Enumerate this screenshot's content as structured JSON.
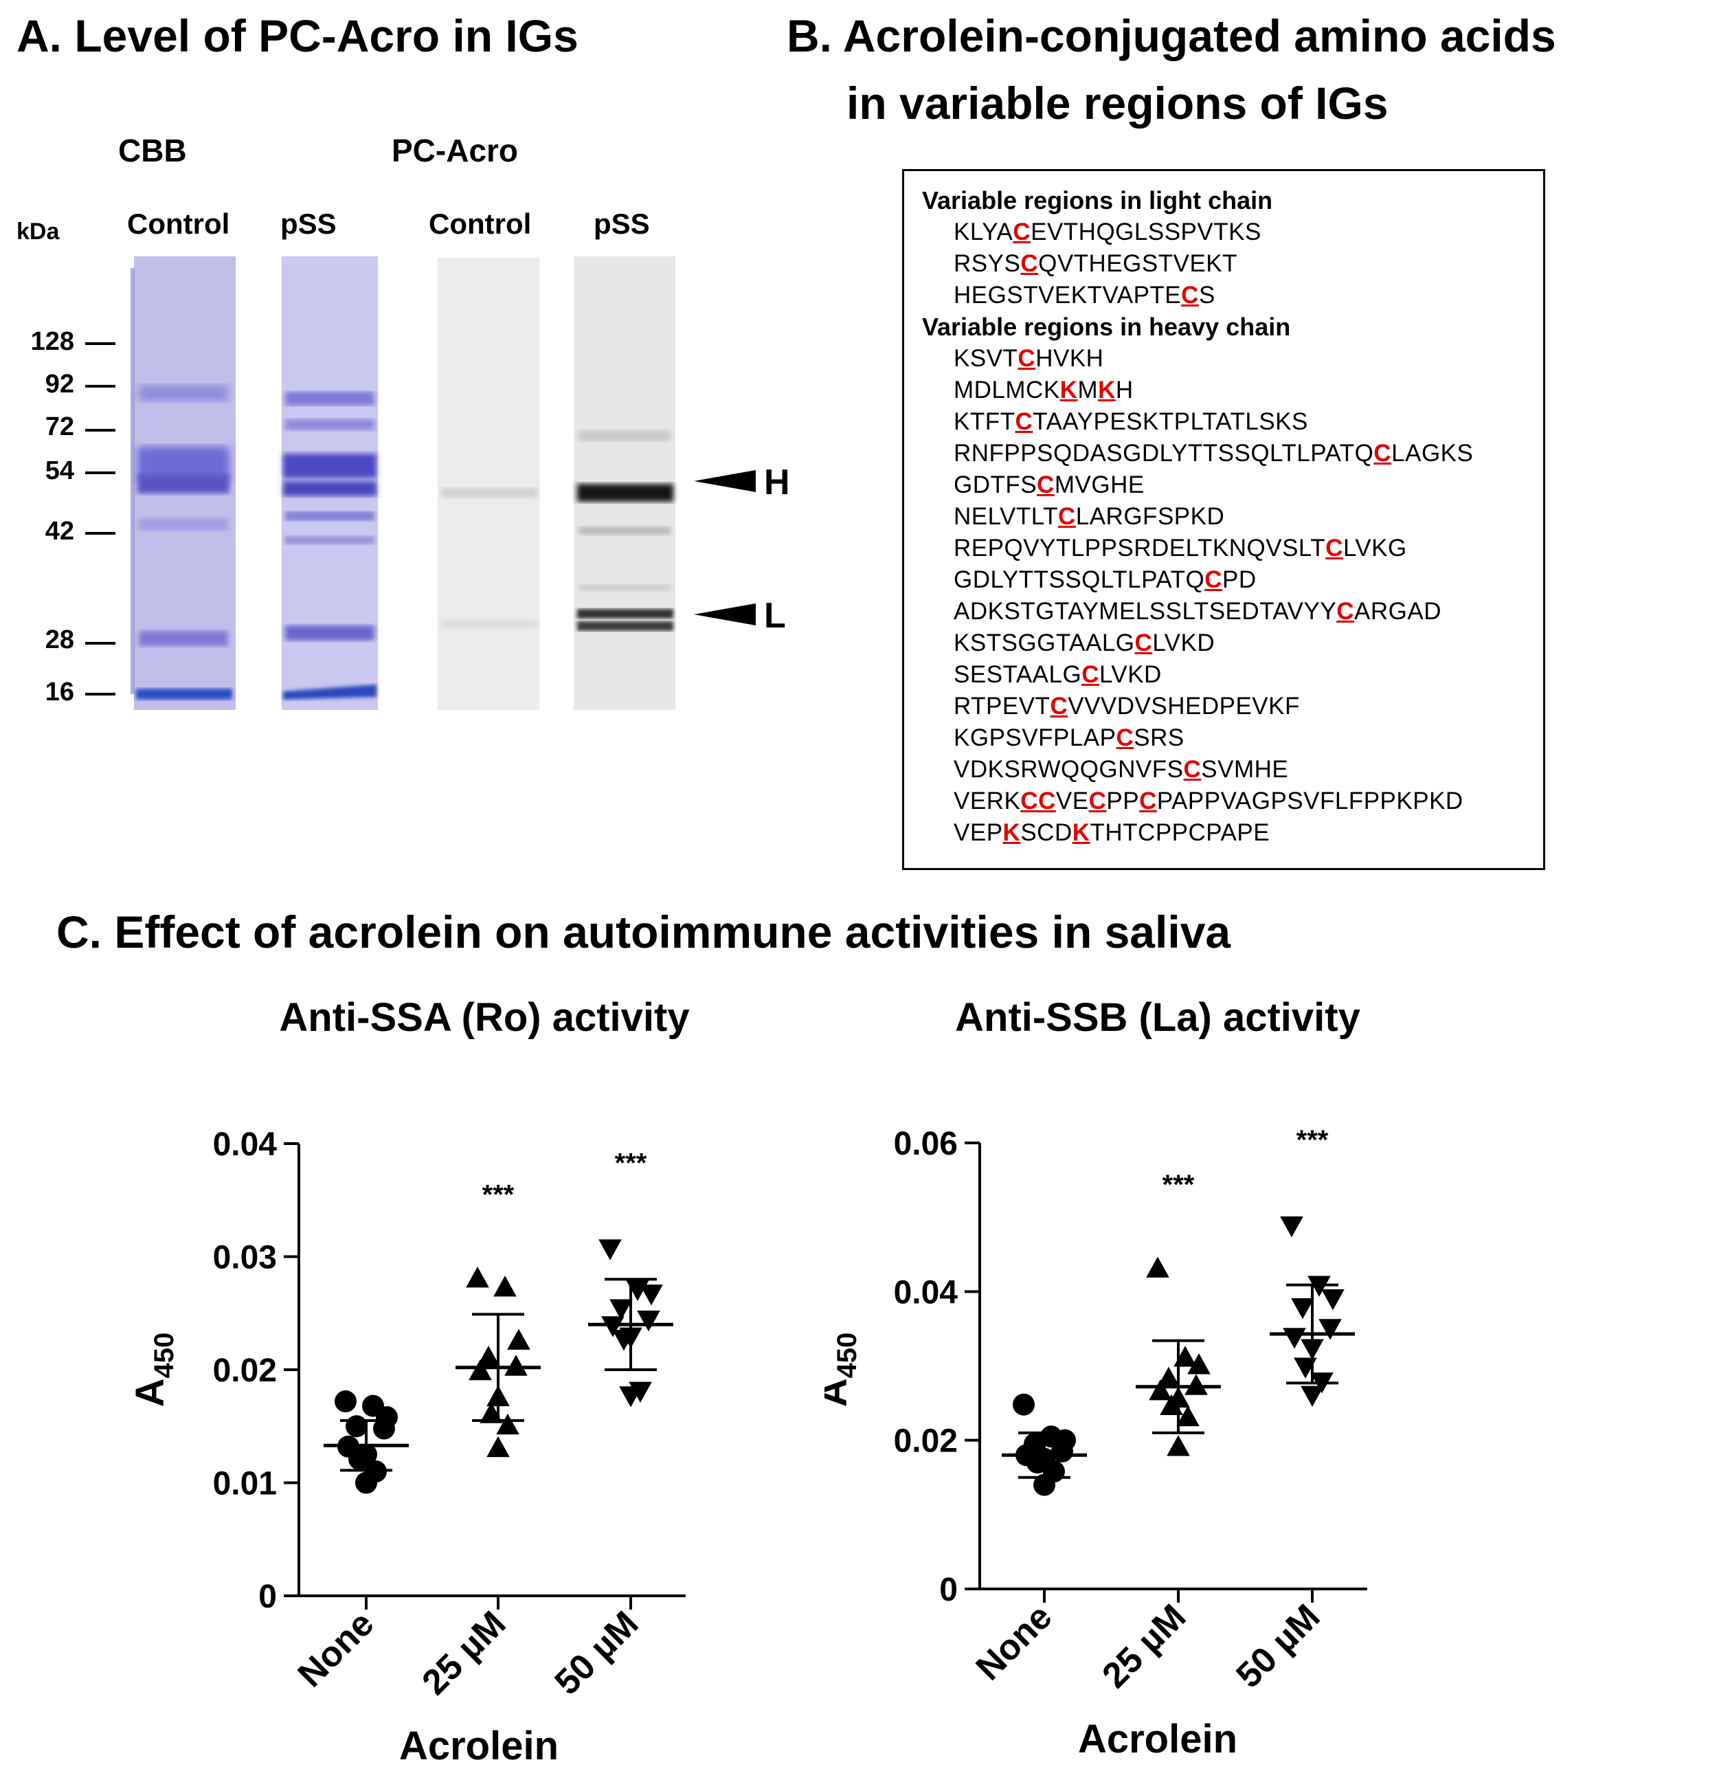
{
  "panel_a": {
    "title": "A. Level of PC-Acro in IGs",
    "cbb_label": "CBB",
    "pcacro_label": "PC-Acro",
    "kda_label": "kDa",
    "lane_labels": [
      "Control",
      "pSS",
      "Control",
      "pSS"
    ],
    "markers": [
      "128",
      "92",
      "72",
      "54",
      "42",
      "28",
      "16"
    ],
    "heavy_label": "H",
    "light_label": "L"
  },
  "panel_b": {
    "title_line1": "B. Acrolein-conjugated amino acids",
    "title_line2": "in variable regions of IGs",
    "light_heading": "Variable regions in light chain",
    "heavy_heading": "Variable regions in heavy chain",
    "light_sequences": [
      {
        "text": "KLYACEVTHQGLSSPVTKS",
        "marks": [
          4
        ]
      },
      {
        "text": "RSYSCQVTHEGSTVEKT",
        "marks": [
          4
        ]
      },
      {
        "text": "HEGSTVEKTVAPTECS",
        "marks": [
          14
        ]
      }
    ],
    "heavy_sequences": [
      {
        "text": "KSVTCHVKH",
        "marks": [
          4
        ]
      },
      {
        "text": "MDLMCKKMKH",
        "marks": [
          6,
          8
        ]
      },
      {
        "text": "KTFTCTAAYPESKTPLTATLSKS",
        "marks": [
          4
        ]
      },
      {
        "text": "RNFPPSQDASGDLYTTSSQLTLPATQCLAGKS",
        "marks": [
          26
        ]
      },
      {
        "text": "GDTFSCMVGHE",
        "marks": [
          5
        ]
      },
      {
        "text": "NELVTLTCLARGFSPKD",
        "marks": [
          7
        ]
      },
      {
        "text": "REPQVYTLPPSRDELTKNQVSLTCLVKG",
        "marks": [
          23
        ]
      },
      {
        "text": "GDLYTTSSQLTLPATQCPD",
        "marks": [
          16
        ]
      },
      {
        "text": "ADKSTGTAYMELSSLTSEDTAVYYCARGAD",
        "marks": [
          24
        ]
      },
      {
        "text": "KSTSGGTAALGCLVKD",
        "marks": [
          11
        ]
      },
      {
        "text": "SESTAALGCLVKD",
        "marks": [
          8
        ]
      },
      {
        "text": "RTPEVTCVVVDVSHEDPEVKF",
        "marks": [
          6
        ]
      },
      {
        "text": "KGPSVFPLAPCSRS",
        "marks": [
          10
        ]
      },
      {
        "text": "VDKSRWQQGNVFSCSVMHE",
        "marks": [
          13
        ]
      },
      {
        "text": "VERKCCVECPPCPAPPVAGPSVFLFPPKPKD",
        "marks": [
          4,
          5,
          8,
          11
        ]
      },
      {
        "text": "VEPKSCDKTHTCPPCPAPE",
        "marks": [
          3,
          7
        ]
      }
    ]
  },
  "panel_c": {
    "title": "C. Effect of acrolein on autoimmune activities in saliva"
  },
  "colors": {
    "highlight": "#e00000",
    "cbb_stain": "#5a5ad0",
    "blot_band": "#151515"
  },
  "chart_data": [
    {
      "type": "scatter",
      "title": "Anti-SSA (Ro) activity",
      "ylabel": "A450",
      "xlabel": "Acrolein",
      "categories": [
        "None",
        "25 µM",
        "50 µM"
      ],
      "ylim": [
        0,
        0.04
      ],
      "yticks": [
        "0",
        "0.01",
        "0.02",
        "0.03",
        "0.04"
      ],
      "markers": [
        "circle",
        "triangle-up",
        "triangle-down"
      ],
      "significance": [
        "",
        "***",
        "***"
      ],
      "series": [
        {
          "name": "None",
          "mean": 0.0133,
          "sd": 0.0022,
          "points": [
            0.0172,
            0.0168,
            0.0158,
            0.015,
            0.0148,
            0.0132,
            0.0125,
            0.0121,
            0.011,
            0.01
          ]
        },
        {
          "name": "25 µM",
          "mean": 0.0202,
          "sd": 0.0047,
          "points": [
            0.028,
            0.0272,
            0.0225,
            0.021,
            0.0202,
            0.0198,
            0.0175,
            0.016,
            0.015,
            0.013
          ]
        },
        {
          "name": "50 µM",
          "mean": 0.024,
          "sd": 0.004,
          "points": [
            0.0308,
            0.0272,
            0.0268,
            0.0255,
            0.0245,
            0.024,
            0.023,
            0.0228,
            0.0182,
            0.0178
          ]
        }
      ]
    },
    {
      "type": "scatter",
      "title": "Anti-SSB (La) activity",
      "ylabel": "A450",
      "xlabel": "Acrolein",
      "categories": [
        "None",
        "25 µM",
        "50 µM"
      ],
      "ylim": [
        0,
        0.06
      ],
      "yticks": [
        "0",
        "0.02",
        "0.04",
        "0.06"
      ],
      "markers": [
        "circle",
        "triangle-up",
        "triangle-down"
      ],
      "significance": [
        "",
        "***",
        "***"
      ],
      "series": [
        {
          "name": "None",
          "mean": 0.018,
          "sd": 0.003,
          "points": [
            0.0248,
            0.0205,
            0.02,
            0.0195,
            0.0185,
            0.018,
            0.0175,
            0.017,
            0.0158,
            0.014
          ]
        },
        {
          "name": "25 µM",
          "mean": 0.0272,
          "sd": 0.0062,
          "points": [
            0.043,
            0.031,
            0.03,
            0.0282,
            0.0272,
            0.0265,
            0.0255,
            0.0245,
            0.023,
            0.019
          ]
        },
        {
          "name": "50 µM",
          "mean": 0.0343,
          "sd": 0.0066,
          "points": [
            0.049,
            0.041,
            0.0392,
            0.038,
            0.0352,
            0.034,
            0.0325,
            0.03,
            0.028,
            0.0262
          ]
        }
      ]
    }
  ]
}
